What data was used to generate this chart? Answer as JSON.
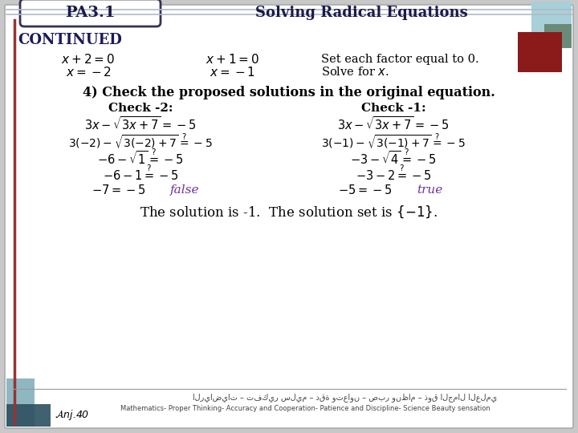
{
  "bg_color": "#c8c8c8",
  "main_bg": "#ffffff",
  "title_text": "Solving Radical Equations",
  "pa_label": "PA3.1",
  "continued_text": "CONTINUED",
  "eq1_line1": "$x+2=0$",
  "eq1_line2": "$x=-2$",
  "eq2_line1": "$x+1=0$",
  "eq2_line2": "$x=-1$",
  "set_factor_text": "Set each factor equal to 0.",
  "solve_text": "Solve for $x$.",
  "check_header": "4) Check the proposed solutions in the original equation.",
  "check_minus2": "Check -2:",
  "check_minus1": "Check -1:",
  "eq_orig_left": "$3x-\\sqrt{3x+7}=-5$",
  "eq_orig_right": "$3x-\\sqrt{3x+7}=-5$",
  "eq_sub_left1": "$3(-2)-\\sqrt{3(-2)+7}\\overset{?}{=}-5$",
  "eq_sub_right1": "$3(-1)-\\sqrt{3(-1)+7}\\overset{?}{=}-5$",
  "eq_step_left2": "$-6-\\sqrt{1}\\overset{?}{=}-5$",
  "eq_step_right2": "$-3-\\sqrt{4}\\overset{?}{=}-5$",
  "eq_step_left3": "$-6-1\\overset{?}{=}-5$",
  "eq_step_right3": "$-3-2\\overset{?}{=}-5$",
  "eq_final_left": "$-7=-5$",
  "eq_final_right": "$-5=-5$",
  "false_text": "false",
  "true_text": "true",
  "false_color": "#7030a0",
  "true_color": "#7030a0",
  "solution_text": "The solution is -1.  The solution set is $\\{-1\\}$.",
  "footer_arabic": "الرياضيات – تفكير سليم – دقة وتعاون – صبر ونظام – ذوق الجمال العلمي",
  "footer_english": "Mathematics- Proper Thinking- Accuracy and Cooperation- Patience and Discipline- Science Beauty sensation",
  "color_teal_light": "#a8d0d8",
  "color_teal_dark": "#6a8a7a",
  "color_red": "#8b1a1a",
  "color_header_line": "#b0b8c8",
  "header_title_color": "#1a1a4a"
}
